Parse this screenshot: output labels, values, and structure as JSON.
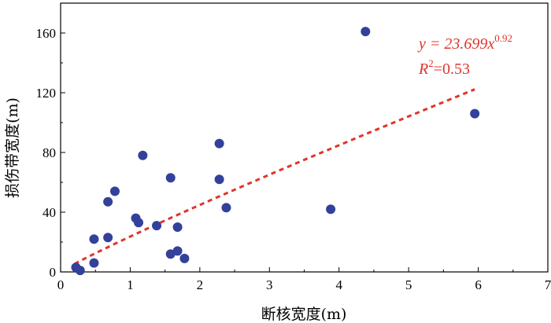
{
  "chart_data": {
    "type": "scatter",
    "xlabel": "断核宽度(m)",
    "ylabel": "损伤带宽度(m)",
    "xlim": [
      0,
      7
    ],
    "ylim": [
      0,
      180
    ],
    "x_ticks": [
      0,
      1,
      2,
      3,
      4,
      5,
      6,
      7
    ],
    "y_ticks": [
      0,
      40,
      80,
      120,
      160
    ],
    "x_tick_labels": [
      "0",
      "1",
      "2",
      "3",
      "4",
      "5",
      "6",
      "7"
    ],
    "y_tick_labels": [
      "0",
      "40",
      "80",
      "120",
      "160"
    ],
    "grid": false,
    "points": [
      {
        "x": 0.22,
        "y": 3
      },
      {
        "x": 0.28,
        "y": 1
      },
      {
        "x": 0.48,
        "y": 22
      },
      {
        "x": 0.48,
        "y": 6
      },
      {
        "x": 0.68,
        "y": 23
      },
      {
        "x": 0.68,
        "y": 47
      },
      {
        "x": 0.78,
        "y": 54
      },
      {
        "x": 1.08,
        "y": 36
      },
      {
        "x": 1.12,
        "y": 33
      },
      {
        "x": 1.18,
        "y": 78
      },
      {
        "x": 1.38,
        "y": 31
      },
      {
        "x": 1.58,
        "y": 63
      },
      {
        "x": 1.58,
        "y": 12
      },
      {
        "x": 1.68,
        "y": 30
      },
      {
        "x": 1.68,
        "y": 14
      },
      {
        "x": 1.78,
        "y": 9
      },
      {
        "x": 2.28,
        "y": 86
      },
      {
        "x": 2.28,
        "y": 62
      },
      {
        "x": 2.38,
        "y": 43
      },
      {
        "x": 3.88,
        "y": 42
      },
      {
        "x": 4.38,
        "y": 161
      },
      {
        "x": 5.95,
        "y": 106
      }
    ],
    "trendline": {
      "type": "power",
      "a": 23.699,
      "b": 0.92,
      "x_range": [
        0.2,
        5.95
      ],
      "r2": 0.53
    },
    "annotations": {
      "equation_prefix": "y = 23.699x",
      "equation_exponent": "0.92",
      "r2_prefix": "R",
      "r2_power": "2",
      "r2_value": "=0.53"
    }
  },
  "colors": {
    "marker": "#33419a",
    "trend": "#e0342b",
    "axis": "#000000"
  }
}
